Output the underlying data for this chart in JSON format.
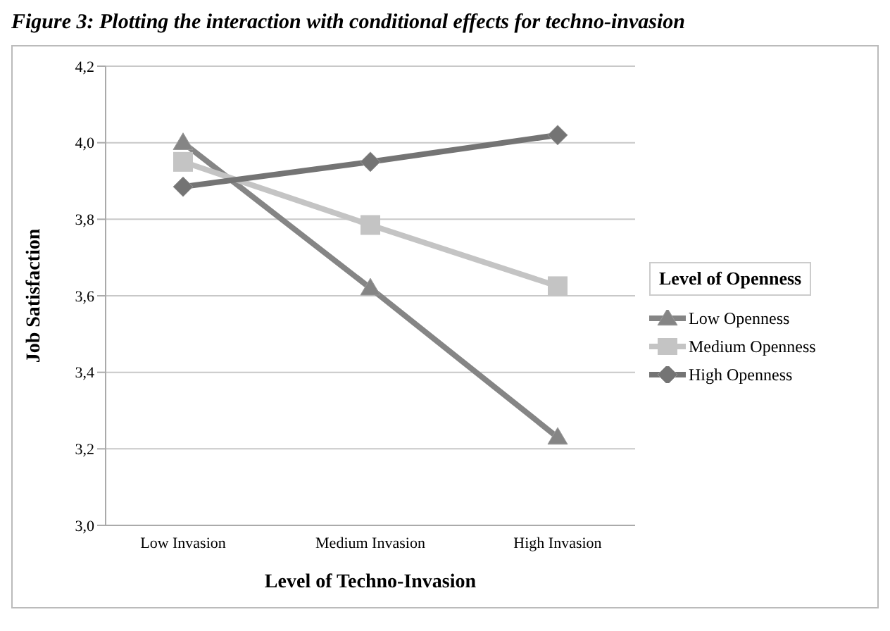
{
  "chart_data": {
    "type": "line",
    "title": "Figure 3: Plotting the interaction with conditional effects for techno-invasion",
    "xlabel": "Level of Techno-Invasion",
    "ylabel": "Job Satisfaction",
    "legend_title": "Level of Openness",
    "categories": [
      "Low Invasion",
      "Medium Invasion",
      "High Invasion"
    ],
    "series": [
      {
        "name": "Low Openness",
        "color": "#858585",
        "marker": "triangle",
        "values": [
          4.0,
          3.62,
          3.23
        ]
      },
      {
        "name": "Medium Openness",
        "color": "#c4c4c4",
        "marker": "square",
        "values": [
          3.95,
          3.785,
          3.625
        ]
      },
      {
        "name": "High Openness",
        "color": "#747474",
        "marker": "diamond",
        "values": [
          3.885,
          3.95,
          4.02
        ]
      }
    ],
    "ylim": [
      3.0,
      4.2
    ],
    "yticks": [
      {
        "value": 3.0,
        "label": "3,0"
      },
      {
        "value": 3.2,
        "label": "3,2"
      },
      {
        "value": 3.4,
        "label": "3,4"
      },
      {
        "value": 3.6,
        "label": "3,6"
      },
      {
        "value": 3.8,
        "label": "3,8"
      },
      {
        "value": 4.0,
        "label": "4,0"
      },
      {
        "value": 4.2,
        "label": "4,2"
      }
    ],
    "grid": "y",
    "legend": "right"
  }
}
